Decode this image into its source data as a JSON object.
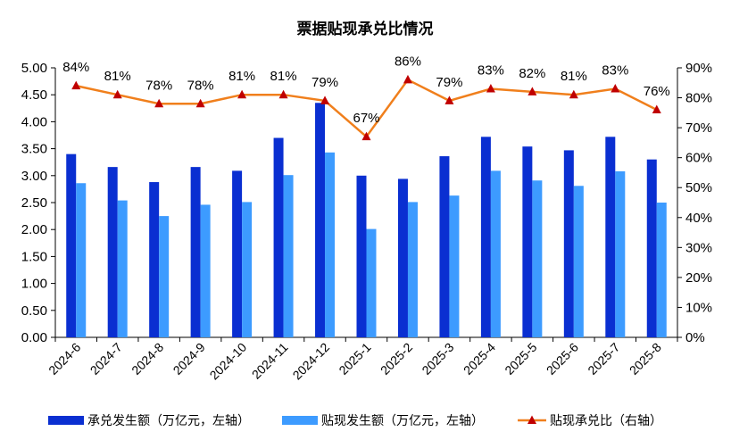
{
  "chart_data": {
    "type": "bar",
    "title": "票据贴现承兑比情况",
    "categories": [
      "2024-6",
      "2024-7",
      "2024-8",
      "2024-9",
      "2024-10",
      "2024-11",
      "2024-12",
      "2025-1",
      "2025-2",
      "2025-3",
      "2025-4",
      "2025-5",
      "2025-6",
      "2025-7",
      "2025-8"
    ],
    "series": [
      {
        "name": "承兑发生额（万亿元，左轴）",
        "kind": "bar",
        "axis": "left",
        "color": "#0a2fd1",
        "values": [
          3.4,
          3.16,
          2.88,
          3.16,
          3.09,
          3.7,
          4.35,
          3.0,
          2.94,
          3.36,
          3.72,
          3.54,
          3.47,
          3.72,
          3.3
        ]
      },
      {
        "name": "贴现发生额（万亿元，左轴）",
        "kind": "bar",
        "axis": "left",
        "color": "#3d9bff",
        "values": [
          2.86,
          2.54,
          2.25,
          2.46,
          2.51,
          3.01,
          3.43,
          2.01,
          2.51,
          2.63,
          3.09,
          2.91,
          2.81,
          3.08,
          2.5
        ]
      },
      {
        "name": "贴现承兑比（右轴）",
        "kind": "line",
        "axis": "right",
        "color": "#f07f1c",
        "marker_color": "#c00000",
        "values": [
          84,
          81,
          78,
          78,
          81,
          81,
          79,
          67,
          86,
          79,
          83,
          82,
          81,
          83,
          76
        ],
        "labels": [
          "84%",
          "81%",
          "78%",
          "78%",
          "81%",
          "81%",
          "79%",
          "67%",
          "86%",
          "79%",
          "83%",
          "82%",
          "81%",
          "83%",
          "76%"
        ]
      }
    ],
    "ylim_left": [
      0,
      5
    ],
    "yticks_left": [
      "0.00",
      "0.50",
      "1.00",
      "1.50",
      "2.00",
      "2.50",
      "3.00",
      "3.50",
      "4.00",
      "4.50",
      "5.00"
    ],
    "ylim_right": [
      0,
      90
    ],
    "yticks_right": [
      "0%",
      "10%",
      "20%",
      "30%",
      "40%",
      "50%",
      "60%",
      "70%",
      "80%",
      "90%"
    ],
    "grid": false,
    "legend_position": "bottom"
  }
}
